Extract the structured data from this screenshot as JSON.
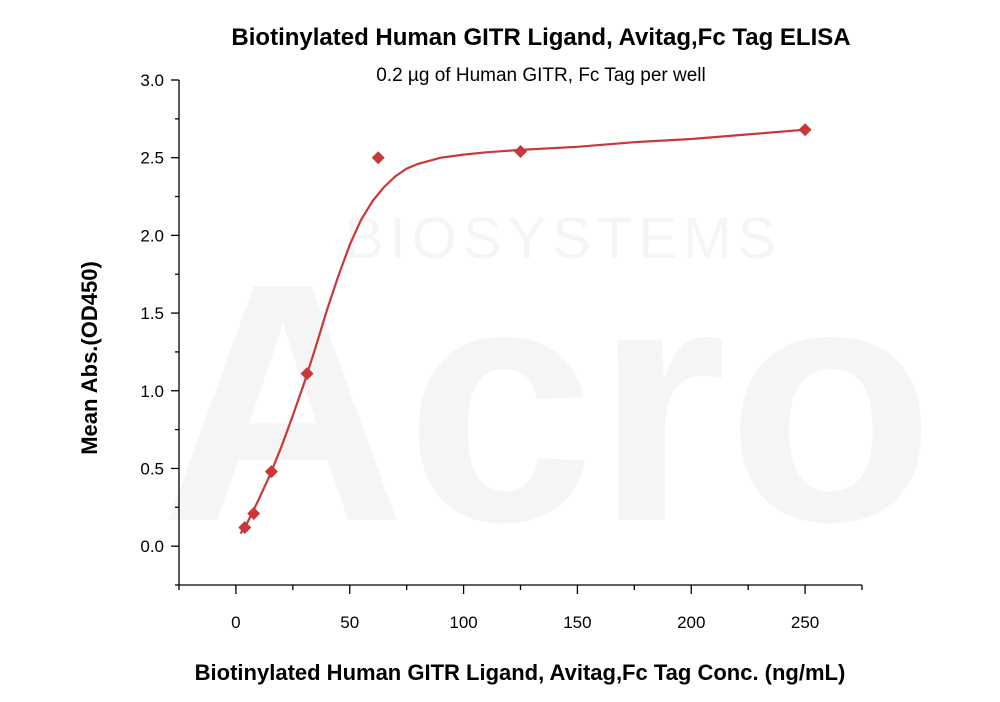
{
  "chart_data": {
    "type": "scatter",
    "title": "Biotinylated Human GITR Ligand, Avitag,Fc Tag ELISA",
    "subtitle": "0.2 µg of Human GITR, Fc Tag per well",
    "xlabel": "Biotinylated Human GITR Ligand, Avitag,Fc Tag Conc. (ng/mL)",
    "ylabel": "Mean Abs.(OD450)",
    "xlim": [
      -25,
      275
    ],
    "ylim": [
      -0.25,
      3.0
    ],
    "x_ticks": [
      0,
      50,
      100,
      150,
      200,
      250
    ],
    "y_ticks": [
      0.0,
      0.5,
      1.0,
      1.5,
      2.0,
      2.5,
      3.0
    ],
    "x_tick_labels": [
      "0",
      "50",
      "100",
      "150",
      "200",
      "250"
    ],
    "y_tick_labels": [
      "0.0",
      "0.5",
      "1.0",
      "1.5",
      "2.0",
      "2.5",
      "3.0"
    ],
    "series": [
      {
        "points": [
          {
            "x": 3.9,
            "y": 0.12
          },
          {
            "x": 7.8,
            "y": 0.21
          },
          {
            "x": 15.6,
            "y": 0.48
          },
          {
            "x": 31.25,
            "y": 1.11
          },
          {
            "x": 62.5,
            "y": 2.5
          },
          {
            "x": 125,
            "y": 2.54
          },
          {
            "x": 250,
            "y": 2.68
          }
        ],
        "fit_curve": {
          "x": [
            2,
            5,
            10,
            15,
            20,
            25,
            30,
            35,
            40,
            45,
            50,
            55,
            60,
            65,
            70,
            75,
            80,
            90,
            100,
            110,
            125,
            150,
            175,
            200,
            225,
            250
          ],
          "y": [
            0.08,
            0.15,
            0.3,
            0.46,
            0.64,
            0.84,
            1.05,
            1.28,
            1.52,
            1.74,
            1.94,
            2.1,
            2.22,
            2.31,
            2.38,
            2.43,
            2.46,
            2.5,
            2.52,
            2.535,
            2.55,
            2.57,
            2.6,
            2.62,
            2.65,
            2.68
          ]
        },
        "color": "#c8383a",
        "marker": "diamond"
      }
    ],
    "grid": false,
    "legend": "none"
  },
  "watermark": {
    "text": "BIOSYSTEMS",
    "logo": "Acro"
  }
}
